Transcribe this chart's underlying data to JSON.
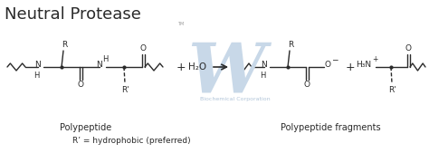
{
  "title": "Neutral Protease",
  "title_fontsize": 13,
  "bg_color": "#ffffff",
  "line_color": "#2a2a2a",
  "text_color": "#2a2a2a",
  "watermark_color": "#c8d8e8",
  "watermark_text_color": "#b0c4d8",
  "label_polypeptide": "Polypeptide",
  "label_fragments": "Polypeptide fragments",
  "label_rprime": "R’ = hydrophobic (preferred)",
  "fig_width": 4.74,
  "fig_height": 1.69,
  "dpi": 100
}
